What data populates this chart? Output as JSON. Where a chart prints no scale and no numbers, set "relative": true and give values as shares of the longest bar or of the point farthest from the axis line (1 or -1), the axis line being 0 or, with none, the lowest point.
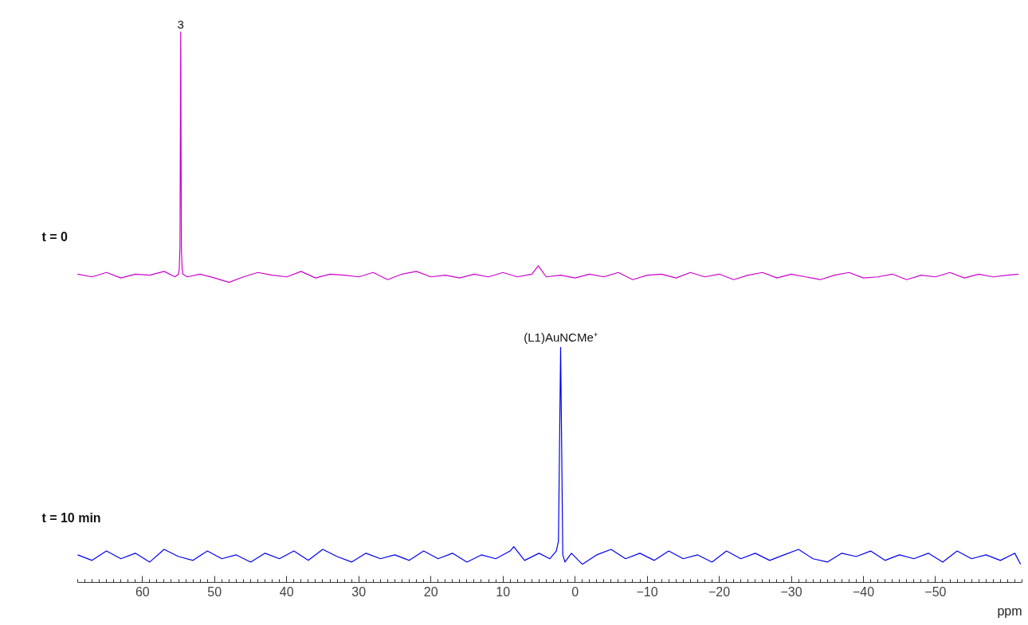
{
  "chart_data": {
    "type": "line",
    "relative": true,
    "xlim": [
      69,
      -62
    ],
    "xticks": [
      60,
      50,
      40,
      30,
      20,
      10,
      0,
      -10,
      -20,
      -30,
      -40,
      -50
    ],
    "xlabel": "ppm",
    "series": [
      {
        "name": "t = 0",
        "color": "#cc00cc",
        "x": [
          69,
          67,
          65,
          63,
          61,
          59,
          57,
          55.5,
          55,
          54.9,
          54.8,
          54.7,
          54.6,
          54.5,
          54.4,
          53.8,
          52,
          50,
          48,
          46,
          44,
          42,
          40,
          38,
          36,
          34,
          32,
          30,
          28,
          26,
          24,
          22,
          20,
          18,
          16,
          14,
          12,
          10,
          8,
          6,
          5.1,
          4,
          2,
          0,
          -2,
          -4,
          -6,
          -8,
          -10,
          -12,
          -14,
          -16,
          -18,
          -20,
          -22,
          -24,
          -26,
          -28,
          -30,
          -32,
          -34,
          -36,
          -38,
          -40,
          -42,
          -44,
          -46,
          -48,
          -50,
          -52,
          -54,
          -56,
          -58,
          -60,
          -61.5
        ],
        "values": [
          0.56,
          0.555,
          0.563,
          0.553,
          0.56,
          0.558,
          0.565,
          0.555,
          0.56,
          0.57,
          0.61,
          1.0,
          0.605,
          0.57,
          0.56,
          0.555,
          0.56,
          0.553,
          0.545,
          0.555,
          0.563,
          0.558,
          0.555,
          0.565,
          0.553,
          0.56,
          0.558,
          0.555,
          0.563,
          0.55,
          0.56,
          0.565,
          0.555,
          0.558,
          0.553,
          0.56,
          0.555,
          0.563,
          0.555,
          0.56,
          0.575,
          0.555,
          0.558,
          0.553,
          0.56,
          0.555,
          0.563,
          0.55,
          0.558,
          0.56,
          0.553,
          0.563,
          0.555,
          0.56,
          0.55,
          0.558,
          0.563,
          0.553,
          0.56,
          0.555,
          0.55,
          0.558,
          0.563,
          0.553,
          0.555,
          0.56,
          0.55,
          0.558,
          0.555,
          0.563,
          0.553,
          0.56,
          0.555,
          0.558,
          0.56
        ]
      },
      {
        "name": "t = 10 min",
        "color": "#0000ee",
        "x": [
          69,
          67,
          65,
          63,
          61,
          59,
          57,
          55,
          53,
          51,
          49,
          47,
          45,
          43,
          41,
          39,
          37,
          35,
          33,
          31,
          29,
          27,
          25,
          23,
          21,
          19,
          17,
          15,
          13,
          11,
          9,
          8.5,
          7,
          5,
          3.5,
          2.6,
          2.3,
          2.0,
          1.7,
          1.4,
          0.5,
          -1,
          -3,
          -5,
          -7,
          -9,
          -11,
          -13,
          -15,
          -17,
          -19,
          -21,
          -23,
          -25,
          -27,
          -29,
          -31,
          -33,
          -35,
          -37,
          -39,
          -41,
          -43,
          -45,
          -47,
          -49,
          -51,
          -53,
          -55,
          -57,
          -59,
          -61,
          -61.8
        ],
        "values": [
          0.05,
          0.04,
          0.057,
          0.043,
          0.053,
          0.037,
          0.06,
          0.047,
          0.04,
          0.057,
          0.043,
          0.05,
          0.037,
          0.053,
          0.043,
          0.057,
          0.04,
          0.06,
          0.047,
          0.037,
          0.053,
          0.043,
          0.05,
          0.04,
          0.057,
          0.043,
          0.053,
          0.037,
          0.05,
          0.043,
          0.057,
          0.065,
          0.04,
          0.053,
          0.043,
          0.057,
          0.075,
          0.427,
          0.05,
          0.037,
          0.053,
          0.033,
          0.05,
          0.06,
          0.043,
          0.053,
          0.04,
          0.057,
          0.043,
          0.05,
          0.037,
          0.057,
          0.043,
          0.053,
          0.04,
          0.05,
          0.06,
          0.043,
          0.037,
          0.053,
          0.047,
          0.057,
          0.04,
          0.05,
          0.043,
          0.053,
          0.037,
          0.057,
          0.043,
          0.05,
          0.04,
          0.053,
          0.033
        ]
      }
    ],
    "annotations": [
      {
        "text": "3",
        "x": 54.7,
        "y": 1.0
      },
      {
        "text": "(L1)AuNCMe⁺",
        "x": 2.0,
        "y": 0.427
      }
    ]
  }
}
